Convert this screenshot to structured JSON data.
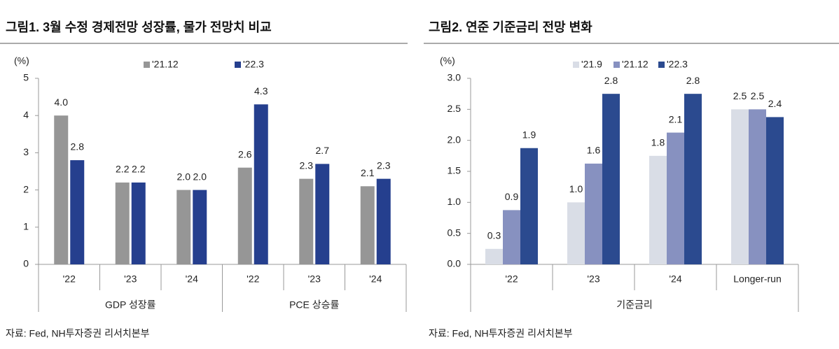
{
  "chart_data": [
    {
      "type": "bar",
      "title": "그림1. 3월 수정 경제전망 성장률, 물가 전망치 비교",
      "ylabel": "(%)",
      "category_groups": [
        {
          "name": "GDP 성장률",
          "categories": [
            "'22",
            "'23",
            "'24"
          ]
        },
        {
          "name": "PCE 상승률",
          "categories": [
            "'22",
            "'23",
            "'24"
          ]
        }
      ],
      "series": [
        {
          "name": "'21.12",
          "color": "#969696",
          "values": [
            4.0,
            2.2,
            2.0,
            2.6,
            2.3,
            2.1
          ],
          "value_labels": [
            "4.0",
            "2.2",
            "2.0",
            "2.6",
            "2.3",
            "2.1"
          ]
        },
        {
          "name": "'22.3",
          "color": "#253f8e",
          "values": [
            2.8,
            2.2,
            2.0,
            4.3,
            2.7,
            2.3
          ],
          "value_labels": [
            "2.8",
            "2.2",
            "2.0",
            "4.3",
            "2.7",
            "2.3"
          ]
        }
      ],
      "ylim": [
        0,
        5
      ],
      "yticks": [
        0,
        1,
        2,
        3,
        4,
        5
      ],
      "legend": "top",
      "grid": false,
      "source": "자료: Fed, NH투자증권 리서치본부"
    },
    {
      "type": "bar",
      "title": "그림2. 연준 기준금리 전망 변화",
      "ylabel": "(%)",
      "category_groups": [
        {
          "name": "기준금리",
          "categories": [
            "'22",
            "'23",
            "'24",
            "Longer-run"
          ]
        }
      ],
      "series": [
        {
          "name": "'21.9",
          "color": "#d9dde6",
          "values": [
            0.25,
            1.0,
            1.75,
            2.5
          ],
          "value_labels": [
            "0.3",
            "1.0",
            "1.8",
            "2.5"
          ]
        },
        {
          "name": "'21.12",
          "color": "#8791c0",
          "values": [
            0.875,
            1.625,
            2.125,
            2.5
          ],
          "value_labels": [
            "0.9",
            "1.6",
            "2.1",
            "2.5"
          ]
        },
        {
          "name": "'22.3",
          "color": "#2b4a8f",
          "values": [
            1.875,
            2.75,
            2.75,
            2.375
          ],
          "value_labels": [
            "1.9",
            "2.8",
            "2.8",
            "2.4"
          ]
        }
      ],
      "ylim": [
        0,
        3
      ],
      "yticks": [
        {
          "value": 0,
          "label": "0.0"
        },
        {
          "value": 0.5,
          "label": "0.5"
        },
        {
          "value": 1,
          "label": "1.0"
        },
        {
          "value": 1.5,
          "label": "1.5"
        },
        {
          "value": 2,
          "label": "2.0"
        },
        {
          "value": 2.5,
          "label": "2.5"
        },
        {
          "value": 3,
          "label": "3.0"
        }
      ],
      "legend": "top",
      "grid": false,
      "source": "자료: Fed, NH투자증권 리서치본부"
    }
  ]
}
